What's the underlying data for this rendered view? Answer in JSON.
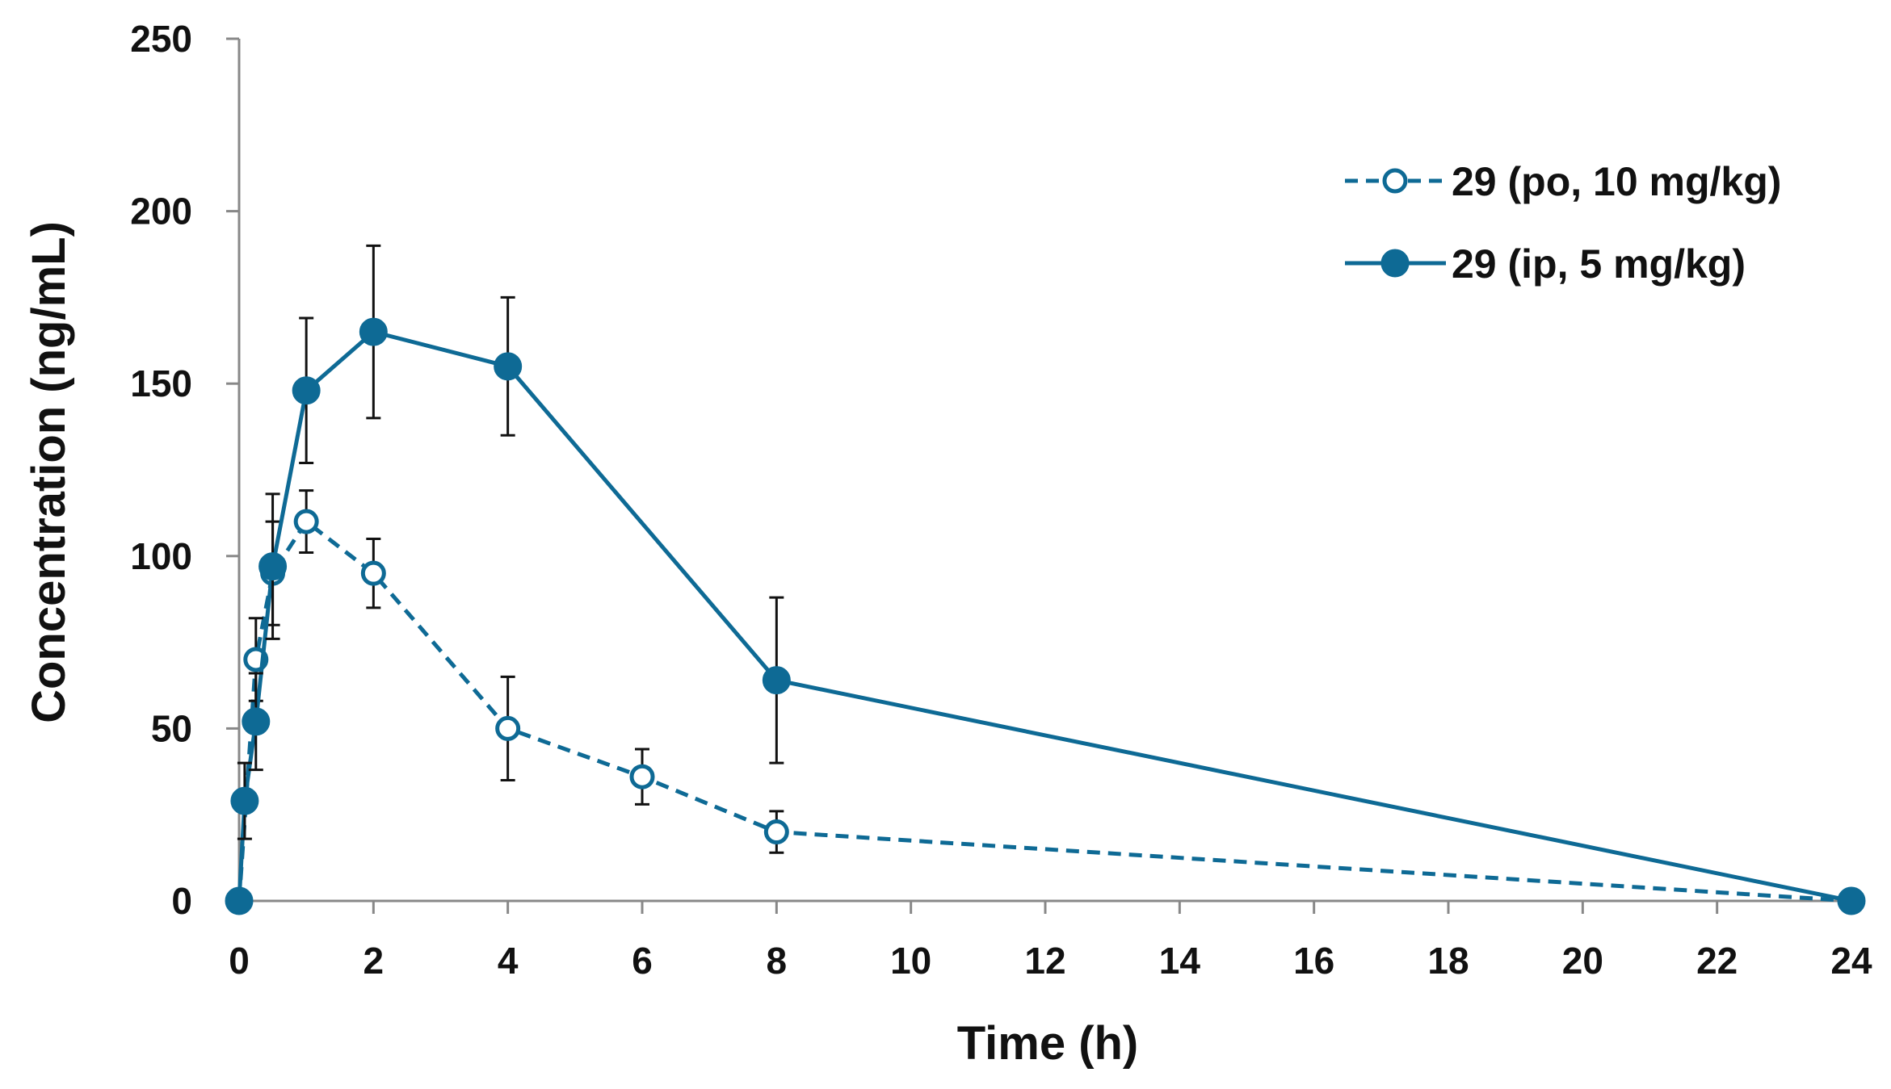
{
  "chart_data": {
    "type": "line",
    "title": "",
    "xlabel": "Time (h)",
    "ylabel": "Concentration (ng/mL)",
    "xlim": [
      0,
      24
    ],
    "ylim": [
      0,
      250
    ],
    "xticks": [
      0,
      2,
      4,
      6,
      8,
      10,
      12,
      14,
      16,
      18,
      20,
      22,
      24
    ],
    "yticks": [
      0,
      50,
      100,
      150,
      200,
      250
    ],
    "grid": false,
    "legend_position": "top-right",
    "colors": {
      "series": "#0e6a95",
      "error_bar": "#111111",
      "axis": "#888888"
    },
    "series": [
      {
        "name": "29 (po, 10 mg/kg)",
        "line_style": "dashed",
        "marker": "open-circle",
        "x": [
          0,
          0.25,
          0.5,
          1,
          2,
          4,
          6,
          8,
          24
        ],
        "y": [
          0,
          70,
          95,
          110,
          95,
          50,
          36,
          20,
          0
        ],
        "error": [
          0,
          12,
          15,
          9,
          10,
          15,
          8,
          6,
          0
        ]
      },
      {
        "name": "29 (ip, 5 mg/kg)",
        "line_style": "solid",
        "marker": "filled-circle",
        "x": [
          0,
          0.083,
          0.25,
          0.5,
          1,
          2,
          4,
          8,
          24
        ],
        "y": [
          0,
          29,
          52,
          97,
          148,
          165,
          155,
          64,
          0
        ],
        "error": [
          0,
          11,
          14,
          21,
          21,
          25,
          20,
          24,
          0
        ]
      }
    ]
  }
}
